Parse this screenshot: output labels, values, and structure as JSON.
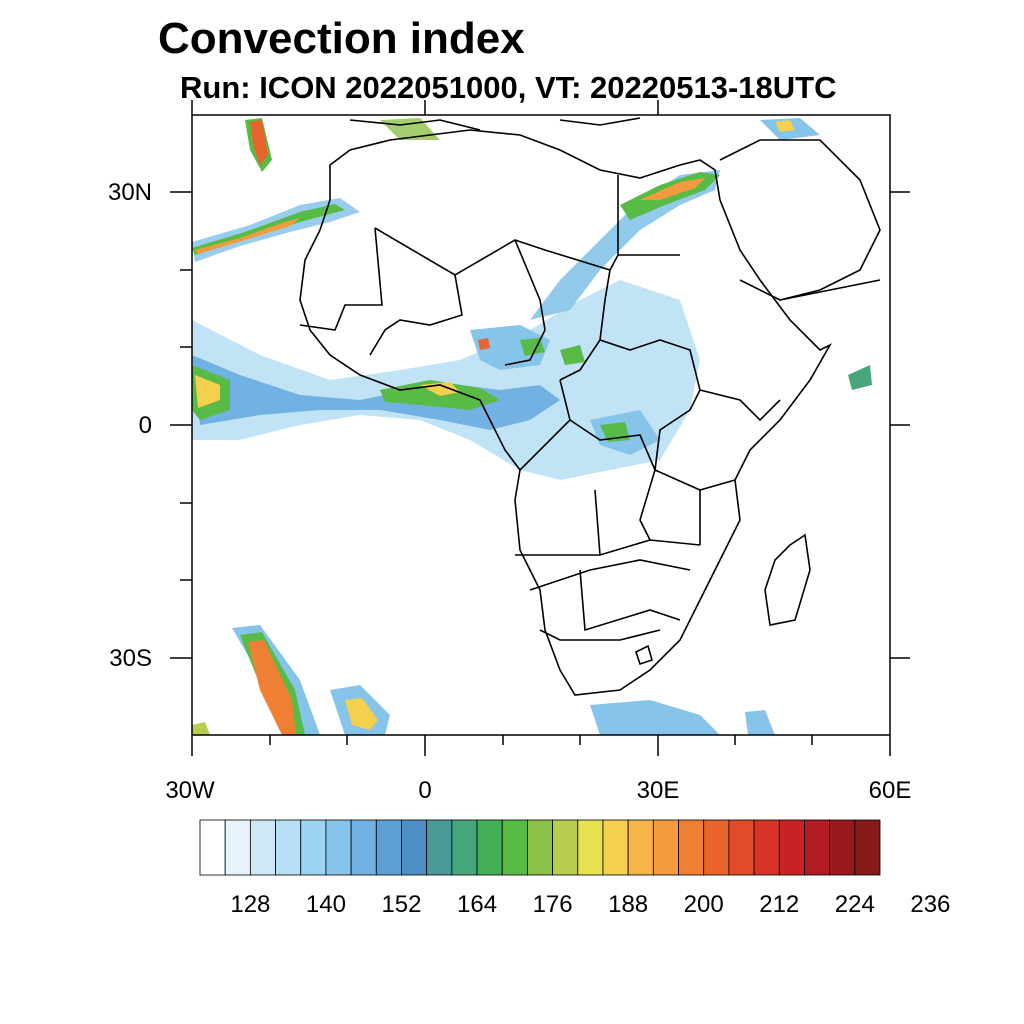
{
  "title": "Convection index",
  "subtitle": "Run: ICON 2022051000,  VT: 20220513-18UTC",
  "axes": {
    "x_ticks": [
      "30W",
      "0",
      "30E",
      "60E"
    ],
    "y_ticks": [
      "30N",
      "0",
      "30S"
    ]
  },
  "colorbar": {
    "labels": [
      "128",
      "140",
      "152",
      "164",
      "176",
      "188",
      "200",
      "212",
      "224",
      "236"
    ],
    "colors": [
      "#ffffff",
      "#e8f4fb",
      "#cfe8f6",
      "#b6def4",
      "#9cd3f2",
      "#86c4ea",
      "#72b2e2",
      "#5ea0d6",
      "#4d8fc6",
      "#4a9a9a",
      "#47a67a",
      "#43b058",
      "#58bb45",
      "#8cc14a",
      "#b8cc4d",
      "#e8e152",
      "#f5cf4e",
      "#f5b547",
      "#f59a3e",
      "#ef7f34",
      "#e9642d",
      "#e24a28",
      "#d93228",
      "#c72226",
      "#b01c22",
      "#9b191d",
      "#861a19"
    ]
  }
}
